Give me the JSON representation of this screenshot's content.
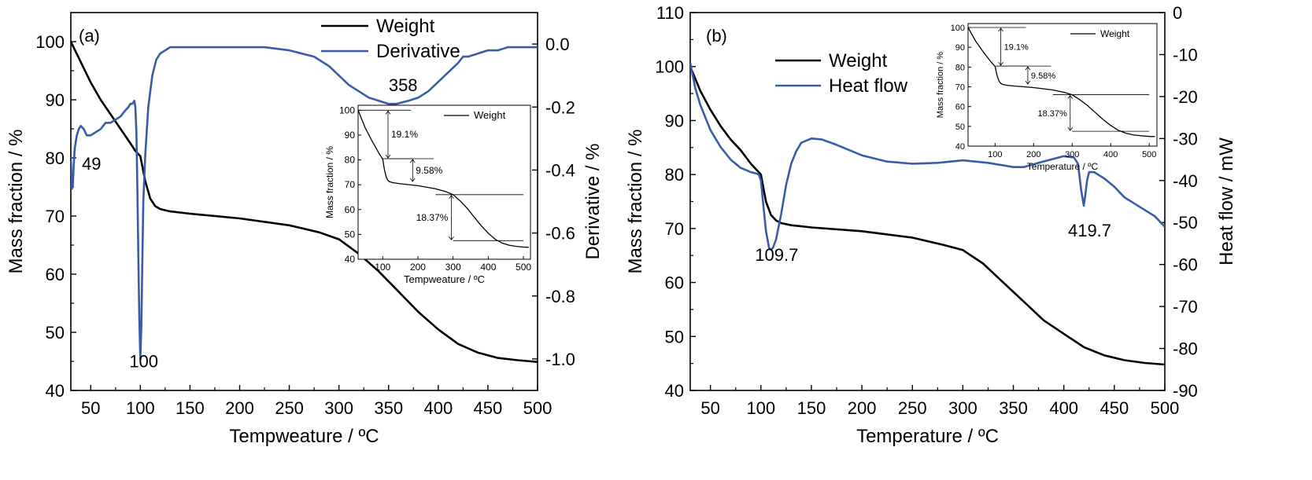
{
  "chart_data": [
    {
      "type": "line",
      "panel_label": "(a)",
      "xlabel": "Tempweature / ºC",
      "ylabel": "Mass fraction / %",
      "ylabel_right": "Derivative / %",
      "xlim": [
        30,
        500
      ],
      "ylim": [
        40,
        105
      ],
      "ylim_right": [
        -1.1,
        0.1
      ],
      "xticks": [
        50,
        100,
        150,
        200,
        250,
        300,
        350,
        400,
        450,
        500
      ],
      "yticks": [
        40,
        50,
        60,
        70,
        80,
        90,
        100
      ],
      "yticks_right": [
        "-1.0",
        "-0.8",
        "-0.6",
        "-0.4",
        "-0.2",
        "0.0"
      ],
      "legend": [
        "Weight",
        "Derivative"
      ],
      "legend_position": "top-center",
      "annotations": [
        {
          "text": "49",
          "x": 49,
          "y": 78
        },
        {
          "text": "100",
          "x": 100,
          "y": 44
        },
        {
          "text": "358",
          "x": 358,
          "y": 91.5
        }
      ],
      "series": [
        {
          "name": "Weight",
          "color": "#000000",
          "axis": "left",
          "x": [
            30,
            40,
            50,
            60,
            70,
            80,
            90,
            95,
            100,
            105,
            110,
            115,
            120,
            130,
            150,
            200,
            250,
            280,
            300,
            320,
            340,
            360,
            380,
            400,
            420,
            440,
            460,
            480,
            500
          ],
          "y": [
            100,
            96.5,
            93,
            90,
            87.5,
            85,
            82.5,
            81.2,
            80.3,
            76,
            73,
            71.7,
            71.2,
            70.8,
            70.4,
            69.6,
            68.4,
            67.2,
            66,
            63.5,
            60.5,
            57,
            53.5,
            50.5,
            48,
            46.5,
            45.6,
            45.2,
            44.9
          ]
        },
        {
          "name": "Derivative",
          "color": "#3a5ba8",
          "axis": "right",
          "x": [
            30,
            31,
            32,
            33,
            34,
            36,
            38,
            40,
            43,
            46,
            50,
            55,
            60,
            65,
            70,
            75,
            80,
            85,
            88,
            90,
            92,
            94,
            95,
            96,
            97,
            98,
            99,
            100,
            101,
            102,
            103,
            105,
            108,
            112,
            116,
            120,
            125,
            130,
            140,
            150,
            175,
            200,
            225,
            250,
            275,
            290,
            300,
            310,
            320,
            330,
            340,
            350,
            358,
            370,
            380,
            390,
            400,
            410,
            420,
            425,
            430,
            440,
            450,
            460,
            470,
            480,
            490,
            500
          ],
          "y": [
            -0.36,
            -0.46,
            -0.45,
            -0.38,
            -0.33,
            -0.29,
            -0.27,
            -0.26,
            -0.27,
            -0.29,
            -0.29,
            -0.28,
            -0.27,
            -0.25,
            -0.25,
            -0.24,
            -0.23,
            -0.21,
            -0.2,
            -0.19,
            -0.19,
            -0.18,
            -0.2,
            -0.28,
            -0.45,
            -0.68,
            -0.88,
            -1.0,
            -0.9,
            -0.7,
            -0.5,
            -0.35,
            -0.2,
            -0.1,
            -0.05,
            -0.03,
            -0.02,
            -0.01,
            -0.01,
            -0.01,
            -0.01,
            -0.01,
            -0.01,
            -0.02,
            -0.04,
            -0.07,
            -0.1,
            -0.13,
            -0.15,
            -0.17,
            -0.18,
            -0.19,
            -0.19,
            -0.18,
            -0.17,
            -0.15,
            -0.12,
            -0.09,
            -0.06,
            -0.04,
            -0.04,
            -0.03,
            -0.02,
            -0.02,
            -0.01,
            -0.01,
            -0.01,
            -0.01
          ]
        }
      ],
      "inset": {
        "type": "line",
        "xlabel": "Tempweature / ºC",
        "ylabel": "Mass fraction / %",
        "xlim": [
          30,
          520
        ],
        "ylim": [
          40,
          102
        ],
        "xticks": [
          100,
          200,
          300,
          400,
          500
        ],
        "yticks": [
          40,
          50,
          60,
          70,
          80,
          90,
          100
        ],
        "legend": [
          "Weight"
        ],
        "step_labels": [
          {
            "text": "19.1%",
            "y_top": 100,
            "y_bot": 80.5,
            "x_arrow": 115,
            "x_line_end": 180
          },
          {
            "text": "9.58%",
            "y_top": 80.5,
            "y_bot": 71,
            "x_arrow": 185,
            "x_line_end": 245
          },
          {
            "text": "18.37%",
            "y_top": 66,
            "y_bot": 47.5,
            "x_arrow": 295,
            "x_line_end": 500
          }
        ],
        "series": [
          {
            "name": "Weight",
            "color": "#000000",
            "x": [
              30,
              50,
              70,
              90,
              100,
              105,
              110,
              115,
              120,
              130,
              150,
              200,
              250,
              280,
              300,
              320,
              340,
              360,
              380,
              400,
              420,
              440,
              460,
              480,
              500,
              515
            ],
            "y": [
              100,
              93,
              87.5,
              82.5,
              80.3,
              76,
              73,
              71.7,
              71.2,
              70.8,
              70.4,
              69.6,
              68.4,
              67.2,
              66,
              63.5,
              60.5,
              57,
              53.5,
              50.5,
              48,
              46.5,
              45.6,
              45.2,
              44.9,
              44.8
            ]
          }
        ]
      }
    },
    {
      "type": "line",
      "panel_label": "(b)",
      "xlabel": "Temperature / ºC",
      "ylabel": "Mass fraction / %",
      "ylabel_right": "Heat flow / mW",
      "xlim": [
        30,
        500
      ],
      "ylim": [
        40,
        110
      ],
      "ylim_right": [
        -90,
        0
      ],
      "xticks": [
        50,
        100,
        150,
        200,
        250,
        300,
        350,
        400,
        450,
        500
      ],
      "yticks": [
        40,
        50,
        60,
        70,
        80,
        90,
        100,
        110
      ],
      "yticks_right": [
        "-90",
        "-80",
        "-70",
        "-60",
        "-50",
        "-40",
        "-30",
        "-20",
        "-10",
        "0"
      ],
      "legend": [
        "Weight",
        "Heat flow"
      ],
      "legend_position": "top-left",
      "annotations": [
        {
          "text": "109.7",
          "x": 109.7,
          "y": 64
        },
        {
          "text": "419.7",
          "x": 419.7,
          "y": 68.5
        }
      ],
      "series": [
        {
          "name": "Weight",
          "color": "#000000",
          "axis": "left",
          "x": [
            30,
            40,
            50,
            60,
            70,
            80,
            90,
            95,
            100,
            105,
            110,
            115,
            120,
            130,
            150,
            200,
            250,
            280,
            300,
            320,
            340,
            360,
            380,
            400,
            420,
            440,
            460,
            480,
            500
          ],
          "y": [
            100,
            95.5,
            92,
            89,
            86.5,
            84.5,
            82,
            81,
            80,
            75,
            72.5,
            71.5,
            71,
            70.6,
            70.2,
            69.5,
            68.3,
            67,
            66,
            63.5,
            60,
            56.5,
            53,
            50.5,
            48,
            46.5,
            45.6,
            45.1,
            44.8
          ]
        },
        {
          "name": "Heat flow",
          "color": "#3a5ba8",
          "axis": "right",
          "x": [
            30,
            35,
            40,
            50,
            60,
            70,
            80,
            90,
            95,
            98,
            100,
            102,
            105,
            108,
            110,
            112,
            115,
            120,
            125,
            130,
            135,
            140,
            150,
            160,
            175,
            200,
            225,
            250,
            275,
            300,
            325,
            350,
            360,
            375,
            400,
            410,
            414,
            417,
            419.7,
            421,
            423,
            425,
            430,
            440,
            450,
            460,
            470,
            480,
            490,
            500
          ],
          "y": [
            -12,
            -18,
            -22,
            -28,
            -32,
            -35,
            -37,
            -38,
            -38.3,
            -38.6,
            -40,
            -45,
            -52,
            -56,
            -56.5,
            -56,
            -54,
            -48,
            -41,
            -36,
            -33,
            -31,
            -30,
            -30.2,
            -31.5,
            -34,
            -35.5,
            -36,
            -35.8,
            -35.2,
            -35.8,
            -36.8,
            -36.8,
            -35.8,
            -34.2,
            -34.5,
            -36,
            -42,
            -46,
            -44,
            -40,
            -38,
            -38,
            -39.5,
            -41.5,
            -44,
            -45.5,
            -47,
            -48.5,
            -51
          ]
        }
      ],
      "inset": {
        "type": "line",
        "xlabel": "Temperature / ºC",
        "ylabel": "Mass fraction / %",
        "xlim": [
          30,
          520
        ],
        "ylim": [
          40,
          102
        ],
        "xticks": [
          100,
          200,
          300,
          400,
          500
        ],
        "yticks": [
          40,
          50,
          60,
          70,
          80,
          90,
          100
        ],
        "legend": [
          "Weight"
        ],
        "step_labels": [
          {
            "text": "19.1%",
            "y_top": 100,
            "y_bot": 80.5,
            "x_arrow": 115,
            "x_line_end": 180
          },
          {
            "text": "9.58%",
            "y_top": 80.5,
            "y_bot": 71,
            "x_arrow": 185,
            "x_line_end": 245
          },
          {
            "text": "18.37%",
            "y_top": 66,
            "y_bot": 47.5,
            "x_arrow": 295,
            "x_line_end": 500
          }
        ],
        "series": [
          {
            "name": "Weight",
            "color": "#000000",
            "x": [
              30,
              50,
              70,
              90,
              100,
              105,
              110,
              115,
              120,
              130,
              150,
              200,
              250,
              280,
              300,
              320,
              340,
              360,
              380,
              400,
              420,
              440,
              460,
              480,
              500,
              515
            ],
            "y": [
              100,
              93,
              87.5,
              82.5,
              80.3,
              76,
              73,
              71.7,
              71.2,
              70.8,
              70.4,
              69.6,
              68.4,
              67.2,
              66,
              63.5,
              60.5,
              57,
              53.5,
              50.5,
              48,
              46.5,
              45.6,
              45.2,
              44.9,
              44.8
            ]
          }
        ]
      }
    }
  ]
}
